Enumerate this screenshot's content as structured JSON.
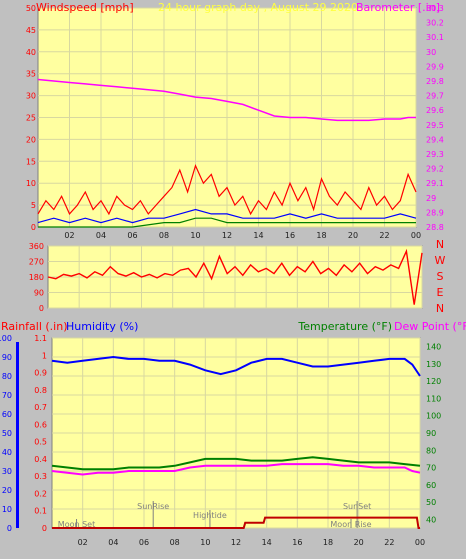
{
  "colors": {
    "background": "#c0c0c0",
    "plot_background": "#ffffa0",
    "grid": "#d8d8a0",
    "wind": "#ff0000",
    "wind_avg": "#0000ff",
    "wind_low": "#008000",
    "barometer": "#ff00ff",
    "direction": "#ff0000",
    "humidity": "#0000ff",
    "temperature": "#008000",
    "dewpoint": "#ff00ff",
    "rain": "#c00000",
    "annotation": "#808080"
  },
  "chart_data": [
    {
      "type": "line",
      "title": "24 hour graph day , August 29 2020",
      "ylabel": "Windspeed [mph]",
      "y2label": "Barometer [.in]",
      "x_ticks": [
        "02",
        "04",
        "06",
        "08",
        "10",
        "12",
        "14",
        "16",
        "18",
        "20",
        "22",
        "00"
      ],
      "y_ticks": [
        "0",
        "5",
        "10",
        "15",
        "20",
        "25",
        "30",
        "35",
        "40",
        "45",
        "50"
      ],
      "ylim": [
        0,
        50
      ],
      "y2_ticks": [
        "28.8",
        "28.9",
        "29",
        "29.1",
        "29.2",
        "29.3",
        "29.4",
        "29.5",
        "29.6",
        "29.7",
        "29.8",
        "29.9",
        "30",
        "30.1",
        "30.2",
        "30.3"
      ],
      "y2lim": [
        28.8,
        30.3
      ],
      "grid": true,
      "series": [
        {
          "key": "barometer",
          "axis": "right",
          "x": [
            0,
            1,
            2,
            3,
            4,
            5,
            6,
            7,
            8,
            9,
            10,
            11,
            12,
            13,
            14,
            15,
            16,
            17,
            18,
            19,
            20,
            21,
            22,
            23,
            23.5,
            24
          ],
          "y": [
            29.81,
            29.8,
            29.79,
            29.78,
            29.77,
            29.76,
            29.75,
            29.74,
            29.73,
            29.71,
            29.69,
            29.68,
            29.66,
            29.64,
            29.6,
            29.56,
            29.55,
            29.55,
            29.54,
            29.53,
            29.53,
            29.53,
            29.54,
            29.54,
            29.55,
            29.55
          ]
        },
        {
          "key": "wind_gust",
          "axis": "left",
          "x": [
            0,
            0.5,
            1,
            1.5,
            2,
            2.5,
            3,
            3.5,
            4,
            4.5,
            5,
            5.5,
            6,
            6.5,
            7,
            7.5,
            8,
            8.5,
            9,
            9.5,
            10,
            10.5,
            11,
            11.5,
            12,
            12.5,
            13,
            13.5,
            14,
            14.5,
            15,
            15.5,
            16,
            16.5,
            17,
            17.5,
            18,
            18.5,
            19,
            19.5,
            20,
            20.5,
            21,
            21.5,
            22,
            22.5,
            23,
            23.5,
            24
          ],
          "y": [
            3,
            6,
            4,
            7,
            3,
            5,
            8,
            4,
            6,
            3,
            7,
            5,
            4,
            6,
            3,
            5,
            7,
            9,
            13,
            8,
            14,
            10,
            12,
            7,
            9,
            5,
            7,
            3,
            6,
            4,
            8,
            5,
            10,
            6,
            9,
            4,
            11,
            7,
            5,
            8,
            6,
            4,
            9,
            5,
            7,
            4,
            6,
            12,
            8
          ]
        },
        {
          "key": "wind_avg",
          "axis": "left",
          "x": [
            0,
            1,
            2,
            3,
            4,
            5,
            6,
            7,
            8,
            9,
            10,
            11,
            12,
            13,
            14,
            15,
            16,
            17,
            18,
            19,
            20,
            21,
            22,
            23,
            24
          ],
          "y": [
            1,
            2,
            1,
            2,
            1,
            2,
            1,
            2,
            2,
            3,
            4,
            3,
            3,
            2,
            2,
            2,
            3,
            2,
            3,
            2,
            2,
            2,
            2,
            3,
            2
          ]
        },
        {
          "key": "wind_low",
          "axis": "left",
          "x": [
            0,
            2,
            4,
            6,
            8,
            9,
            10,
            11,
            12,
            14,
            16,
            18,
            20,
            22,
            24
          ],
          "y": [
            0,
            0,
            0,
            0,
            1,
            1,
            2,
            2,
            1,
            1,
            1,
            1,
            1,
            1,
            1
          ]
        }
      ]
    },
    {
      "type": "line",
      "y_ticks": [
        "0",
        "90",
        "180",
        "270",
        "360"
      ],
      "ylim": [
        0,
        360
      ],
      "right_labels": [
        "N",
        "W",
        "S",
        "E",
        "N"
      ],
      "x": [
        0,
        0.5,
        1,
        1.5,
        2,
        2.5,
        3,
        3.5,
        4,
        4.5,
        5,
        5.5,
        6,
        6.5,
        7,
        7.5,
        8,
        8.5,
        9,
        9.5,
        10,
        10.5,
        11,
        11.5,
        12,
        12.5,
        13,
        13.5,
        14,
        14.5,
        15,
        15.5,
        16,
        16.5,
        17,
        17.5,
        18,
        18.5,
        19,
        19.5,
        20,
        20.5,
        21,
        21.5,
        22,
        22.5,
        23,
        23.5,
        24
      ],
      "y": [
        180,
        170,
        195,
        185,
        200,
        175,
        210,
        190,
        240,
        200,
        185,
        205,
        180,
        195,
        175,
        200,
        190,
        220,
        230,
        180,
        260,
        170,
        300,
        200,
        240,
        190,
        250,
        210,
        230,
        200,
        260,
        190,
        240,
        210,
        270,
        200,
        230,
        190,
        250,
        210,
        260,
        200,
        240,
        220,
        250,
        230,
        330,
        20,
        320
      ]
    },
    {
      "type": "line",
      "ylabel": "Rainfall (.in)",
      "ylabel2": "Humidity (%)",
      "y2label": "Temperature (°F)",
      "y2label2": "Dew Point (°F)",
      "x_ticks": [
        "02",
        "04",
        "06",
        "08",
        "10",
        "12",
        "14",
        "16",
        "18",
        "20",
        "22",
        "00"
      ],
      "y_ticks": [
        "0",
        "10",
        "20",
        "30",
        "40",
        "50",
        "60",
        "70",
        "80",
        "90",
        "100"
      ],
      "ylim": [
        0,
        100
      ],
      "rain_ticks": [
        "0",
        "0.1",
        "0.2",
        "0.3",
        "0.4",
        "0.5",
        "0.6",
        "0.7",
        "0.8",
        "0.9",
        "1",
        "1.1"
      ],
      "rain_lim": [
        0,
        1.1
      ],
      "y2_ticks": [
        "40",
        "50",
        "60",
        "70",
        "80",
        "90",
        "100",
        "110",
        "120",
        "130",
        "140"
      ],
      "y2lim": [
        35,
        145
      ],
      "grid": true,
      "annotations": [
        {
          "text": "Moon Set",
          "x": 1.6
        },
        {
          "text": "SunRise",
          "x": 6.6
        },
        {
          "text": "Hightide",
          "x": 10.3
        },
        {
          "text": "SunSet",
          "x": 19.9
        },
        {
          "text": "Moon Rise",
          "x": 19.5
        }
      ],
      "series": [
        {
          "key": "humidity",
          "axis": "left",
          "x": [
            0,
            1,
            2,
            3,
            4,
            5,
            6,
            7,
            8,
            9,
            10,
            11,
            12,
            13,
            14,
            15,
            16,
            17,
            18,
            19,
            20,
            21,
            22,
            23,
            23.5,
            24
          ],
          "y": [
            88,
            87,
            88,
            89,
            90,
            89,
            89,
            88,
            88,
            86,
            83,
            81,
            83,
            87,
            89,
            89,
            87,
            85,
            85,
            86,
            87,
            88,
            89,
            89,
            86,
            80
          ]
        },
        {
          "key": "temperature",
          "axis": "right",
          "x": [
            0,
            1,
            2,
            3,
            4,
            5,
            6,
            7,
            8,
            9,
            10,
            11,
            12,
            13,
            14,
            15,
            16,
            17,
            18,
            19,
            20,
            21,
            22,
            23,
            24
          ],
          "y": [
            71,
            70,
            69,
            69,
            69,
            70,
            70,
            70,
            71,
            73,
            75,
            75,
            75,
            74,
            74,
            74,
            75,
            76,
            75,
            74,
            73,
            73,
            73,
            72,
            71
          ]
        },
        {
          "key": "dewpoint",
          "axis": "right",
          "x": [
            0,
            1,
            2,
            3,
            4,
            5,
            6,
            7,
            8,
            9,
            10,
            11,
            12,
            13,
            14,
            15,
            16,
            17,
            18,
            19,
            20,
            21,
            22,
            23,
            23.5,
            24
          ],
          "y": [
            68,
            67,
            66,
            67,
            67,
            68,
            68,
            68,
            68,
            70,
            71,
            71,
            71,
            71,
            71,
            72,
            72,
            72,
            72,
            71,
            71,
            70,
            70,
            70,
            68,
            67
          ]
        },
        {
          "key": "rainfall",
          "axis": "rain",
          "x": [
            0,
            12.5,
            12.6,
            13.8,
            13.9,
            23.8,
            23.9,
            24
          ],
          "y": [
            0,
            0,
            0.03,
            0.03,
            0.06,
            0.06,
            0.0,
            0.0
          ]
        }
      ]
    }
  ]
}
